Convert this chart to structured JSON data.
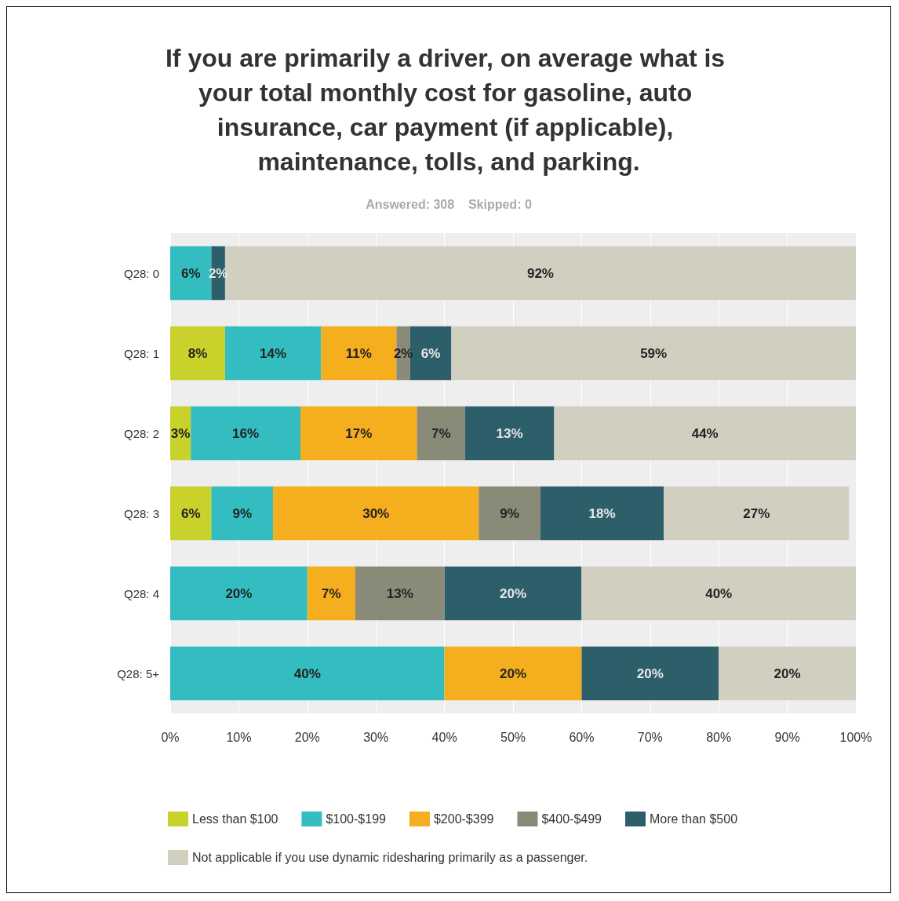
{
  "chart_data": {
    "type": "bar",
    "orientation": "horizontal",
    "stacked": true,
    "title": "If you are primarily a driver, on average what is your total monthly cost for gasoline, auto insurance, car payment (if applicable), maintenance, tolls, and parking.",
    "subtitle": "Answered: 308    Skipped: 0",
    "categories": [
      "Q28: 0",
      "Q28: 1",
      "Q28: 2",
      "Q28: 3",
      "Q28: 4",
      "Q28: 5+"
    ],
    "series": [
      {
        "name": "Less than $100",
        "color": "#c8d22a",
        "values": [
          null,
          8,
          3,
          6,
          null,
          null
        ],
        "value_labels": [
          null,
          "8%",
          "3%",
          "6%",
          null,
          null
        ]
      },
      {
        "name": "$100-$199",
        "color": "#33bdc0",
        "values": [
          6,
          14,
          16,
          9,
          20,
          40
        ],
        "value_labels": [
          "6%",
          "14%",
          "16%",
          "9%",
          "20%",
          "40%"
        ]
      },
      {
        "name": "$200-$399",
        "color": "#f5ae1e",
        "values": [
          null,
          11,
          17,
          30,
          7,
          20
        ],
        "value_labels": [
          null,
          "11%",
          "17%",
          "30%",
          "7%",
          "20%"
        ]
      },
      {
        "name": "$400-$499",
        "color": "#8a8a78",
        "values": [
          null,
          2,
          7,
          9,
          13,
          null
        ],
        "value_labels": [
          null,
          "2%",
          "7%",
          "9%",
          "13%",
          null
        ]
      },
      {
        "name": "More than $500",
        "color": "#2d5f6b",
        "values": [
          2,
          6,
          13,
          18,
          20,
          20
        ],
        "value_labels": [
          "2%",
          "6%",
          "13%",
          "18%",
          "20%",
          "20%"
        ]
      },
      {
        "name": "Not applicable if you use dynamic ridesharing primarily as a passenger.",
        "color": "#d1cfc0",
        "values": [
          92,
          59,
          44,
          27,
          40,
          20
        ],
        "value_labels": [
          "92%",
          "59%",
          "44%",
          "27%",
          "40%",
          "20%"
        ]
      }
    ],
    "xlim": [
      0,
      100
    ],
    "xticks": [
      {
        "value": 0,
        "label": "0%"
      },
      {
        "value": 10,
        "label": "10%"
      },
      {
        "value": 20,
        "label": "20%"
      },
      {
        "value": 30,
        "label": "30%"
      },
      {
        "value": 40,
        "label": "40%"
      },
      {
        "value": 50,
        "label": "50%"
      },
      {
        "value": 60,
        "label": "60%"
      },
      {
        "value": 70,
        "label": "70%"
      },
      {
        "value": 80,
        "label": "80%"
      },
      {
        "value": 90,
        "label": "90%"
      },
      {
        "value": 100,
        "label": "100%"
      }
    ],
    "grid": "x",
    "legend": "bottom"
  }
}
